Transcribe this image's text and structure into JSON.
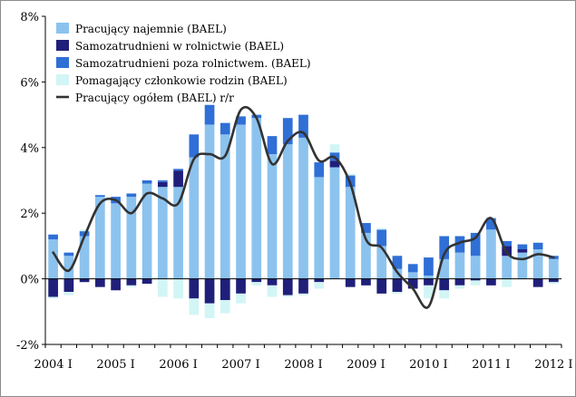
{
  "chart_data": {
    "type": "bar",
    "stacked": true,
    "combined_with": "line",
    "title": "",
    "xlabel": "",
    "ylabel": "",
    "ylim": [
      -2,
      8
    ],
    "y_ticks": [
      "-2%",
      "0%",
      "2%",
      "4%",
      "6%",
      "8%"
    ],
    "x_ticks": [
      "2004 I",
      "2005 I",
      "2006 I",
      "2007 I",
      "2008 I",
      "2009 I",
      "2010 I",
      "2011 I",
      "2012 I"
    ],
    "grid": false,
    "legend_position": "top-left",
    "categories": [
      "2004 I",
      "2004 II",
      "2004 III",
      "2004 IV",
      "2005 I",
      "2005 II",
      "2005 III",
      "2005 IV",
      "2006 I",
      "2006 II",
      "2006 III",
      "2006 IV",
      "2007 I",
      "2007 II",
      "2007 III",
      "2007 IV",
      "2008 I",
      "2008 II",
      "2008 III",
      "2008 IV",
      "2009 I",
      "2009 II",
      "2009 III",
      "2009 IV",
      "2010 I",
      "2010 II",
      "2010 III",
      "2010 IV",
      "2011 I",
      "2011 II",
      "2011 III",
      "2011 IV",
      "2012 I"
    ],
    "series": [
      {
        "name": "Pracujący najemnie (BAEL)",
        "kind": "bar",
        "color": "#8cc3ee",
        "values": [
          1.2,
          0.7,
          1.3,
          2.5,
          2.3,
          2.5,
          2.9,
          2.8,
          2.8,
          3.7,
          4.7,
          4.4,
          4.7,
          4.9,
          3.8,
          4.1,
          4.3,
          3.1,
          3.4,
          2.8,
          1.4,
          1.0,
          0.3,
          0.2,
          0.1,
          0.6,
          0.8,
          0.7,
          1.5,
          0.7,
          0.8,
          0.9,
          0.6
        ]
      },
      {
        "name": "Samozatrudnieni w rolnictwie (BAEL)",
        "kind": "bar",
        "color": "#1f1f7a",
        "values": [
          -0.55,
          -0.4,
          -0.1,
          -0.25,
          -0.35,
          -0.2,
          -0.15,
          0.15,
          0.5,
          -0.6,
          -0.75,
          -0.65,
          -0.45,
          -0.1,
          -0.2,
          -0.5,
          -0.45,
          -0.1,
          0.2,
          -0.25,
          -0.2,
          -0.45,
          -0.4,
          -0.3,
          -0.2,
          -0.35,
          -0.2,
          -0.05,
          -0.2,
          0.3,
          0.1,
          -0.25,
          -0.1
        ]
      },
      {
        "name": "Samozatrudnieni poza rolnictwem. (BAEL)",
        "kind": "bar",
        "color": "#2f6fd6",
        "values": [
          0.15,
          0.1,
          0.15,
          0.05,
          0.2,
          0.1,
          0.1,
          0.05,
          0.05,
          0.7,
          0.6,
          0.35,
          0.25,
          0.1,
          0.55,
          0.8,
          0.7,
          0.45,
          0.25,
          0.35,
          0.3,
          0.5,
          0.4,
          0.25,
          0.55,
          0.7,
          0.5,
          0.7,
          0.35,
          0.15,
          0.15,
          0.2,
          0.1
        ]
      },
      {
        "name": "Pomagający członkowie rodzin (BAEL)",
        "kind": "bar",
        "color": "#d2f5f5",
        "values": [
          -0.05,
          -0.1,
          0.05,
          0.0,
          0.0,
          -0.05,
          0.0,
          -0.55,
          -0.6,
          -0.5,
          -0.45,
          -0.4,
          -0.3,
          -0.1,
          -0.35,
          -0.05,
          -0.05,
          -0.2,
          0.25,
          0.05,
          0.0,
          0.05,
          -0.05,
          0.0,
          -0.4,
          -0.25,
          -0.1,
          -0.15,
          0.0,
          -0.25,
          0.0,
          0.0,
          -0.05
        ]
      },
      {
        "name": "Pracujący ogółem (BAEL) r/r",
        "kind": "line",
        "color": "#333333",
        "values": [
          0.8,
          0.25,
          1.3,
          2.3,
          2.4,
          2.0,
          2.6,
          2.45,
          2.3,
          3.65,
          3.8,
          3.75,
          5.15,
          4.9,
          3.5,
          4.2,
          4.45,
          3.6,
          3.7,
          2.9,
          1.2,
          0.95,
          0.2,
          -0.3,
          -0.85,
          0.75,
          1.1,
          1.25,
          1.85,
          0.8,
          0.6,
          0.75,
          0.65
        ]
      }
    ]
  }
}
